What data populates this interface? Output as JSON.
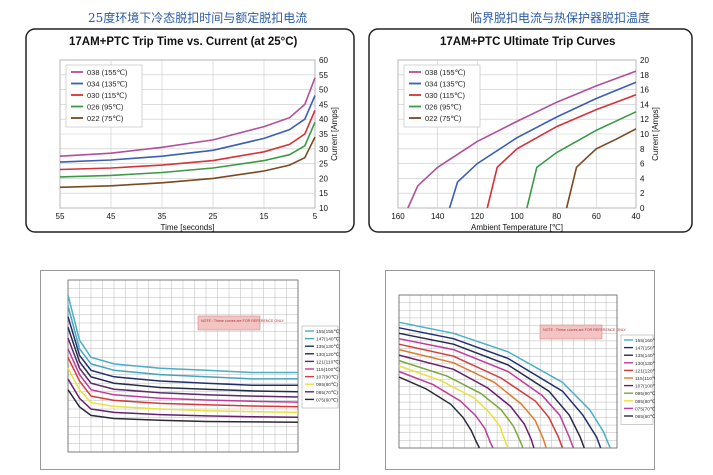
{
  "page": {
    "left_title": "25度环境下冷态脱扣时间与额定脱扣电流",
    "right_title": "临界脱扣电流与热保护器脱扣温度"
  },
  "chart_data": [
    {
      "type": "line",
      "title": "17AM+PTC Trip Time vs. Current (at 25°C)",
      "xlabel": "Time [seconds]",
      "ylabel": "Current [Amps]",
      "x_ticks": [
        "55",
        "45",
        "35",
        "25",
        "15",
        "5"
      ],
      "y_ticks": [
        "10",
        "15",
        "20",
        "25",
        "30",
        "35",
        "40",
        "45",
        "50",
        "55",
        "60"
      ],
      "xlim": [
        55,
        5
      ],
      "ylim": [
        10,
        60
      ],
      "legend_position": "top-left",
      "series": [
        {
          "name": "038 (155℃)",
          "color": "#b24f9a",
          "x": [
            55,
            45,
            35,
            25,
            15,
            10,
            7,
            5
          ],
          "y": [
            27.5,
            28.5,
            30.5,
            33,
            37.5,
            40.5,
            45,
            54
          ]
        },
        {
          "name": "034 (135℃)",
          "color": "#3a5fb5",
          "x": [
            55,
            45,
            35,
            25,
            15,
            10,
            7,
            5
          ],
          "y": [
            25.5,
            26.2,
            27.5,
            29.5,
            33.5,
            36.5,
            40,
            48
          ]
        },
        {
          "name": "030 (115℃)",
          "color": "#d6323a",
          "x": [
            55,
            45,
            35,
            25,
            15,
            10,
            7,
            5
          ],
          "y": [
            23,
            23.5,
            24.5,
            26,
            29,
            31.5,
            35,
            43
          ]
        },
        {
          "name": "026 (95℃)",
          "color": "#3b9a48",
          "x": [
            55,
            45,
            35,
            25,
            15,
            10,
            7,
            5
          ],
          "y": [
            20.5,
            21,
            22,
            23.5,
            26,
            28,
            31,
            39
          ]
        },
        {
          "name": "022 (75℃)",
          "color": "#7a4a1e",
          "x": [
            55,
            45,
            35,
            25,
            15,
            10,
            7,
            5
          ],
          "y": [
            17,
            17.5,
            18.5,
            20,
            22.5,
            24.5,
            27,
            34
          ]
        }
      ]
    },
    {
      "type": "line",
      "title": "17AM+PTC Ultimate Trip Curves",
      "xlabel": "Ambient Temperature [℃]",
      "ylabel": "Current [Amps]",
      "x_ticks": [
        "160",
        "140",
        "120",
        "100",
        "80",
        "60",
        "40"
      ],
      "y_ticks": [
        "0",
        "2",
        "4",
        "6",
        "8",
        "10",
        "12",
        "14",
        "16",
        "18",
        "20"
      ],
      "xlim": [
        160,
        40
      ],
      "ylim": [
        0,
        20
      ],
      "legend_position": "top-left",
      "series": [
        {
          "name": "038 (155℃)",
          "color": "#b24f9a",
          "x": [
            155,
            150,
            140,
            120,
            100,
            80,
            60,
            40
          ],
          "y": [
            0,
            3,
            5.5,
            9,
            11.7,
            14.3,
            16.5,
            18.5
          ]
        },
        {
          "name": "034 (135℃)",
          "color": "#3a5fb5",
          "x": [
            134,
            130,
            120,
            100,
            80,
            60,
            40
          ],
          "y": [
            0,
            3.5,
            6,
            9.5,
            12.3,
            14.8,
            17
          ]
        },
        {
          "name": "030 (115℃)",
          "color": "#d6323a",
          "x": [
            115,
            110,
            100,
            80,
            60,
            40
          ],
          "y": [
            0,
            5.5,
            8,
            11,
            13.3,
            15.3
          ]
        },
        {
          "name": "026 (95℃)",
          "color": "#3b9a48",
          "x": [
            95,
            90,
            80,
            60,
            40
          ],
          "y": [
            0,
            5.5,
            7.5,
            10.5,
            13
          ]
        },
        {
          "name": "022 (75℃)",
          "color": "#7a4a1e",
          "x": [
            75,
            70,
            60,
            50,
            40
          ],
          "y": [
            0,
            5.5,
            8,
            9.3,
            10.7
          ]
        }
      ]
    },
    {
      "type": "line",
      "title": "",
      "note": "NOTE : These curves are FOR REFERENCE ONLY.",
      "xlim": [
        0,
        100
      ],
      "ylim": [
        0,
        40
      ],
      "legend_position": "right",
      "series": [
        {
          "name": "155(155℃)",
          "color": "#4aaec6",
          "x": [
            0,
            5,
            10,
            20,
            40,
            60,
            80,
            100
          ],
          "y": [
            36.5,
            26,
            22,
            20.5,
            19.5,
            19,
            18.5,
            18.5
          ]
        },
        {
          "name": "147(140℃)",
          "color": "#45a3bf",
          "x": [
            0,
            5,
            10,
            20,
            40,
            60,
            80,
            100
          ],
          "y": [
            34,
            24,
            20.5,
            19,
            18,
            17.5,
            17,
            17
          ]
        },
        {
          "name": "135(130℃)",
          "color": "#1f2f6e",
          "x": [
            0,
            5,
            10,
            20,
            40,
            60,
            80,
            100
          ],
          "y": [
            31.5,
            22.5,
            19,
            17.5,
            16.5,
            16,
            15.5,
            15.5
          ]
        },
        {
          "name": "130(120℃)",
          "color": "#242a4a",
          "x": [
            0,
            5,
            10,
            20,
            40,
            60,
            80,
            100
          ],
          "y": [
            29,
            21,
            17.5,
            16,
            15,
            14.6,
            14.2,
            14
          ]
        },
        {
          "name": "121(110℃)",
          "color": "#5a2a6e",
          "x": [
            0,
            5,
            10,
            20,
            40,
            60,
            80,
            100
          ],
          "y": [
            26.5,
            19.5,
            16,
            14.6,
            13.8,
            13.3,
            13,
            12.8
          ]
        },
        {
          "name": "115(100℃)",
          "color": "#c03a9a",
          "x": [
            0,
            5,
            10,
            20,
            40,
            60,
            80,
            100
          ],
          "y": [
            24,
            18,
            14.5,
            13.3,
            12.5,
            12.1,
            11.8,
            11.6
          ]
        },
        {
          "name": "107(90℃)",
          "color": "#d53a3a",
          "x": [
            0,
            5,
            10,
            20,
            40,
            60,
            80,
            100
          ],
          "y": [
            22,
            16.5,
            13,
            12,
            11.3,
            11,
            10.7,
            10.5
          ]
        },
        {
          "name": "095(80℃)",
          "color": "#e8e23a",
          "x": [
            0,
            5,
            10,
            20,
            40,
            60,
            80,
            100
          ],
          "y": [
            19.5,
            14.5,
            11.5,
            10.6,
            10,
            9.6,
            9.4,
            9.2
          ]
        },
        {
          "name": "085(70℃)",
          "color": "#6a1f6e",
          "x": [
            0,
            5,
            10,
            20,
            40,
            60,
            80,
            100
          ],
          "y": [
            17,
            12.5,
            10,
            9.2,
            8.7,
            8.4,
            8.2,
            8.1
          ]
        },
        {
          "name": "075(60℃)",
          "color": "#2a2a3a",
          "x": [
            0,
            5,
            10,
            20,
            40,
            60,
            80,
            100
          ],
          "y": [
            14.5,
            10.5,
            8.5,
            7.8,
            7.4,
            7.1,
            7,
            6.9
          ]
        }
      ]
    },
    {
      "type": "line",
      "title": "",
      "note": "NOTE : These curves are FOR REFERENCE ONLY.",
      "xlim": [
        0,
        160
      ],
      "ylim": [
        0,
        14
      ],
      "legend_position": "right",
      "series": [
        {
          "name": "155(160℃)",
          "color": "#4aaec6",
          "x": [
            0,
            40,
            80,
            120,
            140,
            150,
            155
          ],
          "y": [
            11.5,
            10.5,
            8.8,
            6,
            3.5,
            1.5,
            0
          ]
        },
        {
          "name": "147(150℃)",
          "color": "#1f2f6e",
          "x": [
            0,
            40,
            80,
            120,
            135,
            145,
            148
          ],
          "y": [
            11,
            10,
            8.2,
            5.2,
            3,
            1,
            0
          ]
        },
        {
          "name": "135(140℃)",
          "color": "#242a4a",
          "x": [
            0,
            40,
            80,
            110,
            125,
            133,
            136
          ],
          "y": [
            10.5,
            9.5,
            7.6,
            5.2,
            3,
            1,
            0
          ]
        },
        {
          "name": "130(130℃)",
          "color": "#c03a9a",
          "x": [
            0,
            40,
            80,
            105,
            118,
            125,
            128
          ],
          "y": [
            10,
            9,
            7,
            4.8,
            3,
            1,
            0
          ]
        },
        {
          "name": "121(120℃)",
          "color": "#d53a3a",
          "x": [
            0,
            40,
            75,
            100,
            110,
            117,
            120
          ],
          "y": [
            9.5,
            8.4,
            6.4,
            4.3,
            2.8,
            1,
            0
          ]
        },
        {
          "name": "115(110℃)",
          "color": "#e07a2a",
          "x": [
            0,
            40,
            70,
            90,
            100,
            106,
            108
          ],
          "y": [
            9,
            7.8,
            6,
            4,
            2.5,
            0.8,
            0
          ]
        },
        {
          "name": "107(100℃)",
          "color": "#6a1f6e",
          "x": [
            0,
            40,
            65,
            82,
            92,
            97,
            99
          ],
          "y": [
            8.5,
            7.2,
            5.5,
            3.8,
            2.2,
            0.8,
            0
          ]
        },
        {
          "name": "095(90℃)",
          "color": "#7aa83a",
          "x": [
            0,
            35,
            60,
            75,
            84,
            89,
            91
          ],
          "y": [
            8,
            6.6,
            5,
            3.5,
            2,
            0.6,
            0
          ]
        },
        {
          "name": "085(80℃)",
          "color": "#e8e23a",
          "x": [
            0,
            30,
            55,
            66,
            74,
            78,
            80
          ],
          "y": [
            7.5,
            6.2,
            4.6,
            3.3,
            2,
            0.6,
            0
          ]
        },
        {
          "name": "075(70℃)",
          "color": "#c03a9a",
          "x": [
            0,
            25,
            45,
            56,
            63,
            67,
            69
          ],
          "y": [
            7,
            5.8,
            4.3,
            3,
            1.8,
            0.5,
            0
          ]
        },
        {
          "name": "065(60℃)",
          "color": "#2a2a3a",
          "x": [
            0,
            20,
            38,
            47,
            53,
            57,
            59
          ],
          "y": [
            6.5,
            5.4,
            4,
            2.8,
            1.6,
            0.5,
            0
          ]
        }
      ]
    }
  ]
}
